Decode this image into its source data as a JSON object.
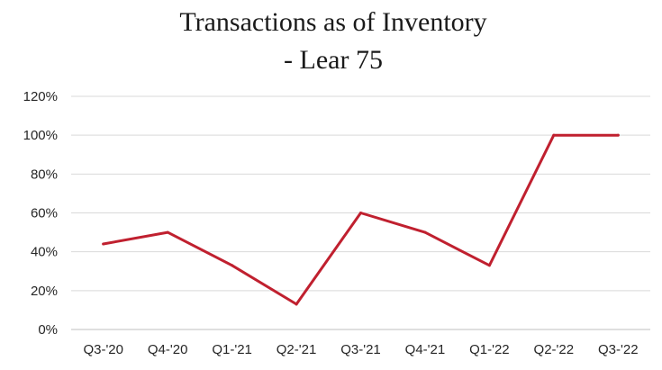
{
  "chart_data": {
    "type": "line",
    "title_lines": [
      "Transactions as of Inventory",
      "- Lear 75"
    ],
    "xlabel": "",
    "ylabel": "",
    "categories": [
      "Q3-'20",
      "Q4-'20",
      "Q1-'21",
      "Q2-'21",
      "Q3-'21",
      "Q4-'21",
      "Q1-'22",
      "Q2-'22",
      "Q3-'22"
    ],
    "series": [
      {
        "values": [
          0.44,
          0.5,
          0.33,
          0.13,
          0.6,
          0.5,
          0.33,
          1.0,
          1.0
        ],
        "color": "#c0202f"
      }
    ],
    "ylim": [
      0,
      1.2
    ],
    "yticks": [
      0,
      0.2,
      0.4,
      0.6,
      0.8,
      1.0,
      1.2
    ],
    "ytick_labels": [
      "0%",
      "20%",
      "40%",
      "60%",
      "80%",
      "100%",
      "120%"
    ],
    "grid": true,
    "legend": "none"
  }
}
